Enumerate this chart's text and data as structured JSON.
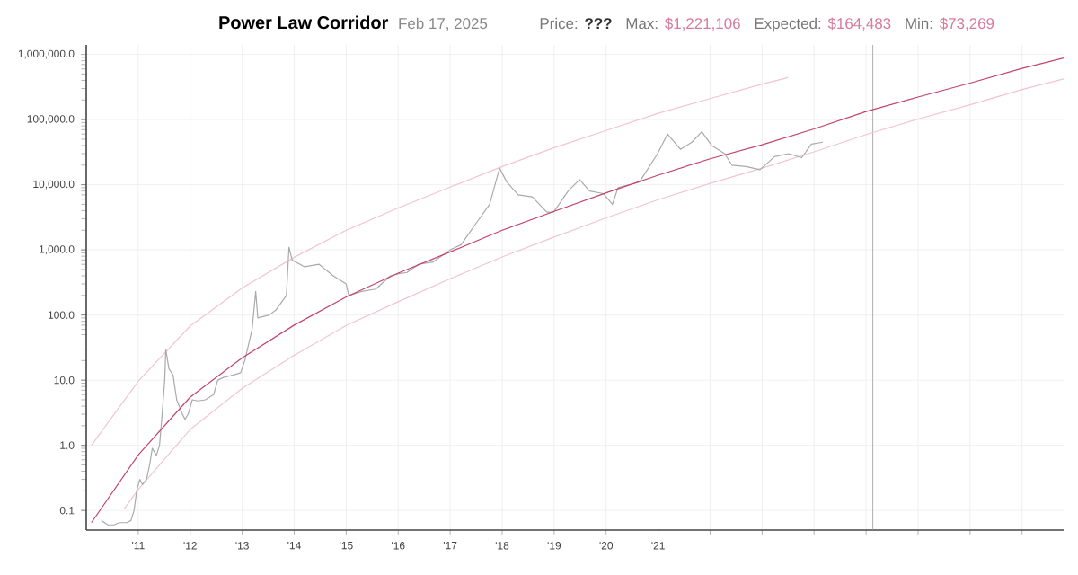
{
  "chart_data": {
    "type": "line",
    "title": "Power Law Corridor",
    "subtitle": "Feb 17, 2025",
    "annotations": [
      "Price:",
      "???",
      "Max:",
      "$1,221,106",
      "Expected:",
      "$164,483",
      "Min:",
      "$73,269"
    ],
    "log": "y",
    "grid": true,
    "marker": "none",
    "line_style": "solid",
    "xlim": [
      2010.0,
      2028.8
    ],
    "ylim": [
      0.05,
      1400000
    ],
    "xticks": [
      {
        "value": 2011,
        "label": "'11"
      },
      {
        "value": 2012,
        "label": "'12"
      },
      {
        "value": 2013,
        "label": "'13"
      },
      {
        "value": 2014,
        "label": "'14"
      },
      {
        "value": 2015,
        "label": "'15"
      },
      {
        "value": 2016,
        "label": "'16"
      },
      {
        "value": 2017,
        "label": "'17"
      },
      {
        "value": 2018,
        "label": "'18"
      },
      {
        "value": 2019,
        "label": "'19"
      },
      {
        "value": 2020,
        "label": "'20"
      },
      {
        "value": 2021,
        "label": "'21"
      },
      {
        "value": 2022,
        "label": null
      },
      {
        "value": 2023,
        "label": null
      },
      {
        "value": 2024,
        "label": null
      },
      {
        "value": 2025,
        "label": null
      },
      {
        "value": 2026,
        "label": null
      },
      {
        "value": 2027,
        "label": null
      },
      {
        "value": 2028,
        "label": null
      }
    ],
    "yticks": [
      {
        "value": 0.1,
        "label": "0.1"
      },
      {
        "value": 1,
        "label": "1.0"
      },
      {
        "value": 10,
        "label": "10.0"
      },
      {
        "value": 100,
        "label": "100.0"
      },
      {
        "value": 1000,
        "label": "1,000.0"
      },
      {
        "value": 10000,
        "label": "10,000.0"
      },
      {
        "value": 100000,
        "label": "100,000.0"
      },
      {
        "value": 1000000,
        "label": "1,000,000.0"
      }
    ],
    "ref_lines": [
      {
        "axis": "x",
        "value": 2025.13,
        "color": "#999999"
      }
    ],
    "series": [
      {
        "color": "#f2c4d0",
        "x": [
          2010.1,
          2011,
          2012,
          2013,
          2014,
          2015,
          2016,
          2017,
          2018,
          2019,
          2020,
          2021,
          2022,
          2023,
          2023.5
        ],
        "values": [
          1.0,
          9.6,
          68,
          260,
          770,
          2000,
          4400,
          9200,
          19000,
          37000,
          68000,
          125000,
          210000,
          350000,
          440000
        ]
      },
      {
        "color": "#f2c4d0",
        "x": [
          2010.73,
          2011,
          2012,
          2013,
          2014,
          2015,
          2016,
          2017,
          2018,
          2019,
          2020,
          2021,
          2022,
          2023,
          2024,
          2025,
          2026,
          2027,
          2028,
          2028.8
        ],
        "values": [
          0.106,
          0.21,
          1.75,
          7.5,
          24,
          69,
          160,
          360,
          780,
          1570,
          3100,
          5900,
          10500,
          18000,
          32000,
          59000,
          102000,
          169000,
          290000,
          420000
        ]
      },
      {
        "color": "#aaaaaa",
        "x": [
          2010.29,
          2010.42,
          2010.53,
          2010.64,
          2010.78,
          2010.86,
          2010.92,
          2010.97,
          2011.03,
          2011.08,
          2011.16,
          2011.22,
          2011.27,
          2011.35,
          2011.41,
          2011.46,
          2011.51,
          2011.53,
          2011.59,
          2011.67,
          2011.74,
          2011.85,
          2011.9,
          2011.96,
          2012.04,
          2012.15,
          2012.29,
          2012.45,
          2012.53,
          2012.64,
          2012.83,
          2012.97,
          2013.05,
          2013.19,
          2013.26,
          2013.3,
          2013.52,
          2013.65,
          2013.85,
          2013.9,
          2013.96,
          2014.2,
          2014.48,
          2014.75,
          2015.0,
          2015.05,
          2015.3,
          2015.57,
          2015.85,
          2016.01,
          2016.17,
          2016.39,
          2016.67,
          2017.0,
          2017.21,
          2017.49,
          2017.76,
          2017.95,
          2018.09,
          2018.31,
          2018.58,
          2018.86,
          2018.99,
          2019.27,
          2019.49,
          2019.68,
          2019.95,
          2020.12,
          2020.23,
          2020.64,
          2020.99,
          2021.18,
          2021.43,
          2021.65,
          2021.84,
          2022.03,
          2022.28,
          2022.42,
          2022.69,
          2022.96,
          2023.24,
          2023.51,
          2023.76,
          2023.95,
          2024.17
        ],
        "values": [
          0.07,
          0.06,
          0.06,
          0.065,
          0.065,
          0.07,
          0.1,
          0.2,
          0.3,
          0.25,
          0.3,
          0.5,
          0.9,
          0.7,
          1.0,
          3,
          10,
          30,
          15,
          12,
          5,
          3,
          2.5,
          3,
          5,
          4.8,
          5,
          6,
          10,
          11,
          12,
          13,
          20,
          60,
          230,
          90,
          100,
          120,
          200,
          1100,
          700,
          550,
          600,
          400,
          300,
          200,
          230,
          250,
          400,
          430,
          450,
          600,
          650,
          1000,
          1200,
          2500,
          5000,
          18000,
          11000,
          7000,
          6500,
          3800,
          3800,
          8000,
          12000,
          8000,
          7300,
          5000,
          9000,
          11000,
          30000,
          60000,
          35000,
          45000,
          65000,
          40000,
          30000,
          20000,
          19000,
          17000,
          27000,
          30000,
          26000,
          42000,
          45000
        ]
      },
      {
        "color": "#c2426f",
        "x": [
          2010.1,
          2011,
          2012,
          2013,
          2014,
          2015,
          2016,
          2017,
          2018,
          2019,
          2020,
          2021,
          2022,
          2023,
          2024,
          2025,
          2026,
          2027,
          2028,
          2028.8
        ],
        "values": [
          0.065,
          0.71,
          5.5,
          22,
          70,
          190,
          440,
          930,
          2000,
          3900,
          7500,
          14000,
          25000,
          41000,
          72000,
          133000,
          222000,
          363000,
          612000,
          880000
        ]
      }
    ]
  }
}
